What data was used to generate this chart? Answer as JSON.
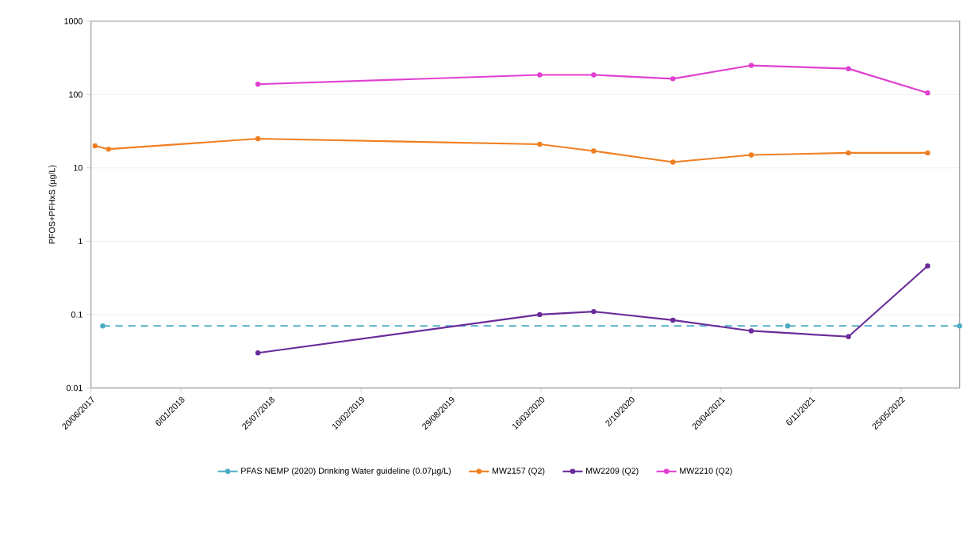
{
  "chart_data": {
    "type": "line",
    "ylabel": "PFOS+PFHxS (µg/L)",
    "log": "y",
    "grid": "y",
    "legend": "bottom",
    "marker": "circle",
    "xlim": [
      "2017-06-20",
      "2022-10-02"
    ],
    "xticks": [
      {
        "value": "2017-06-20",
        "label": "20/06/2017"
      },
      {
        "value": "2018-01-06",
        "label": "6/01/2018"
      },
      {
        "value": "2018-07-25",
        "label": "25/07/2018"
      },
      {
        "value": "2019-02-10",
        "label": "10/02/2019"
      },
      {
        "value": "2019-08-29",
        "label": "29/08/2019"
      },
      {
        "value": "2020-03-16",
        "label": "16/03/2020"
      },
      {
        "value": "2020-10-02",
        "label": "2/10/2020"
      },
      {
        "value": "2021-04-20",
        "label": "20/04/2021"
      },
      {
        "value": "2021-11-06",
        "label": "6/11/2021"
      },
      {
        "value": "2022-05-25",
        "label": "25/05/2022"
      }
    ],
    "ylim": [
      0.01,
      1000
    ],
    "yticks": [
      0.01,
      0.1,
      1,
      10,
      100,
      1000
    ],
    "series": [
      {
        "name": "PFAS NEMP (2020) Drinking Water guideline (0.07µg/L)",
        "color": "#4bacc6",
        "line_style": "dashed",
        "x": [
          "2017-07-16",
          "2021-09-15",
          "2022-10-02"
        ],
        "values": [
          0.07,
          0.07,
          0.07
        ]
      },
      {
        "name": "MW2157 (Q2)",
        "color": "#f07f22",
        "x": [
          "2017-06-29",
          "2017-07-29",
          "2018-06-26",
          "2020-03-13",
          "2020-07-11",
          "2021-01-03",
          "2021-06-26",
          "2022-01-28",
          "2022-07-23"
        ],
        "values": [
          20,
          18,
          25,
          21,
          17,
          12,
          15,
          16,
          16
        ]
      },
      {
        "name": "MW2209 (Q2)",
        "color": "#6a2c9a",
        "x": [
          "2018-06-26",
          "2020-03-13",
          "2020-07-11",
          "2021-01-03",
          "2021-06-26",
          "2022-01-28",
          "2022-07-23"
        ],
        "values": [
          0.03,
          0.1,
          0.11,
          0.084,
          0.06,
          0.05,
          0.46
        ]
      },
      {
        "name": "MW2210 (Q2)",
        "color": "#e040d0",
        "x": [
          "2018-06-26",
          "2020-03-13",
          "2020-07-11",
          "2021-01-03",
          "2021-06-26",
          "2022-01-28",
          "2022-07-23"
        ],
        "values": [
          138,
          185,
          185,
          164,
          249,
          225,
          105
        ]
      }
    ]
  }
}
